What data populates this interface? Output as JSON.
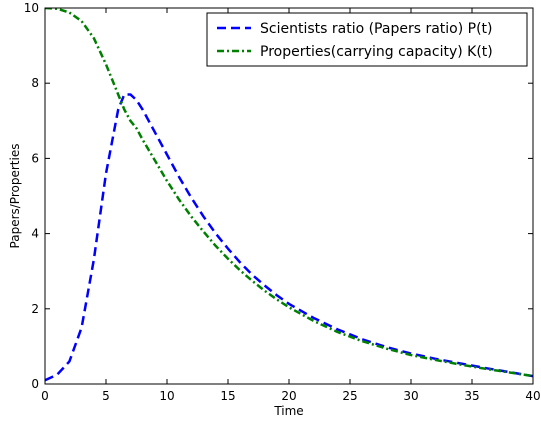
{
  "chart_data": {
    "type": "line",
    "xlabel": "Time",
    "ylabel": "Papers/Properties",
    "xlim": [
      0,
      40
    ],
    "ylim": [
      0,
      10
    ],
    "xticks": [
      "0",
      "5",
      "10",
      "15",
      "20",
      "25",
      "30",
      "35",
      "40"
    ],
    "yticks": [
      "0",
      "2",
      "4",
      "6",
      "8",
      "10"
    ],
    "grid": false,
    "legend_position": "top-right",
    "x": [
      0,
      1,
      2,
      3,
      4,
      5,
      6,
      6.5,
      7,
      7.5,
      8,
      9,
      10,
      11,
      12,
      13,
      14,
      15,
      16,
      17,
      18,
      19,
      20,
      22,
      24,
      26,
      28,
      30,
      32,
      34,
      36,
      38,
      40
    ],
    "series": [
      {
        "name": "Scientists ratio (Papers ratio) P(t)",
        "color": "#0000ff",
        "line_style": "dashed",
        "values": [
          0.1,
          0.25,
          0.6,
          1.5,
          3.3,
          5.6,
          7.3,
          7.7,
          7.7,
          7.55,
          7.3,
          6.7,
          6.1,
          5.5,
          4.95,
          4.45,
          4.0,
          3.6,
          3.23,
          2.9,
          2.62,
          2.36,
          2.13,
          1.76,
          1.45,
          1.19,
          0.98,
          0.81,
          0.67,
          0.55,
          0.43,
          0.32,
          0.21
        ]
      },
      {
        "name": "Properties(carrying capacity) K(t)",
        "color": "#008000",
        "line_style": "dash-dot",
        "values": [
          10.0,
          9.98,
          9.88,
          9.65,
          9.2,
          8.5,
          7.7,
          7.3,
          7.0,
          6.8,
          6.5,
          5.95,
          5.4,
          4.9,
          4.45,
          4.05,
          3.67,
          3.33,
          3.02,
          2.74,
          2.48,
          2.25,
          2.04,
          1.68,
          1.38,
          1.14,
          0.94,
          0.77,
          0.64,
          0.52,
          0.41,
          0.31,
          0.21
        ]
      }
    ]
  }
}
